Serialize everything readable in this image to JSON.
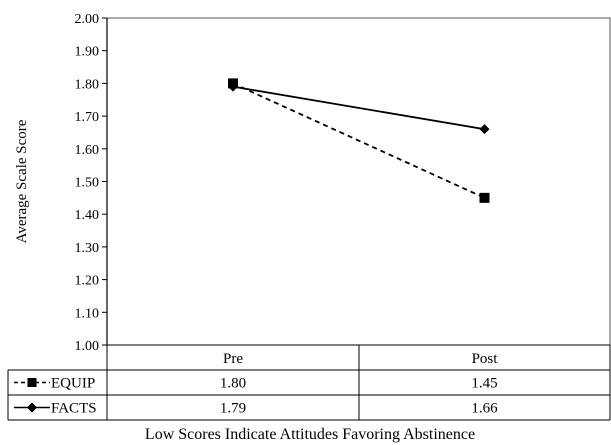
{
  "chart_data": {
    "type": "line",
    "categories": [
      "Pre",
      "Post"
    ],
    "series": [
      {
        "name": "EQUIP",
        "values": [
          1.8,
          1.45
        ],
        "labels": [
          "1.80",
          "1.45"
        ],
        "line": "dashed",
        "marker": "square"
      },
      {
        "name": "FACTS",
        "values": [
          1.79,
          1.66
        ],
        "labels": [
          "1.79",
          "1.66"
        ],
        "line": "solid",
        "marker": "diamond"
      }
    ],
    "ylabel": "Average Scale Score",
    "xlabel": "Low Scores Indicate Attitudes Favoring Abstinence",
    "ylim": [
      1.0,
      2.0
    ],
    "yticks": [
      "1.00",
      "1.10",
      "1.20",
      "1.30",
      "1.40",
      "1.50",
      "1.60",
      "1.70",
      "1.80",
      "1.90",
      "2.00"
    ],
    "grid": false,
    "legend": "data-table"
  }
}
